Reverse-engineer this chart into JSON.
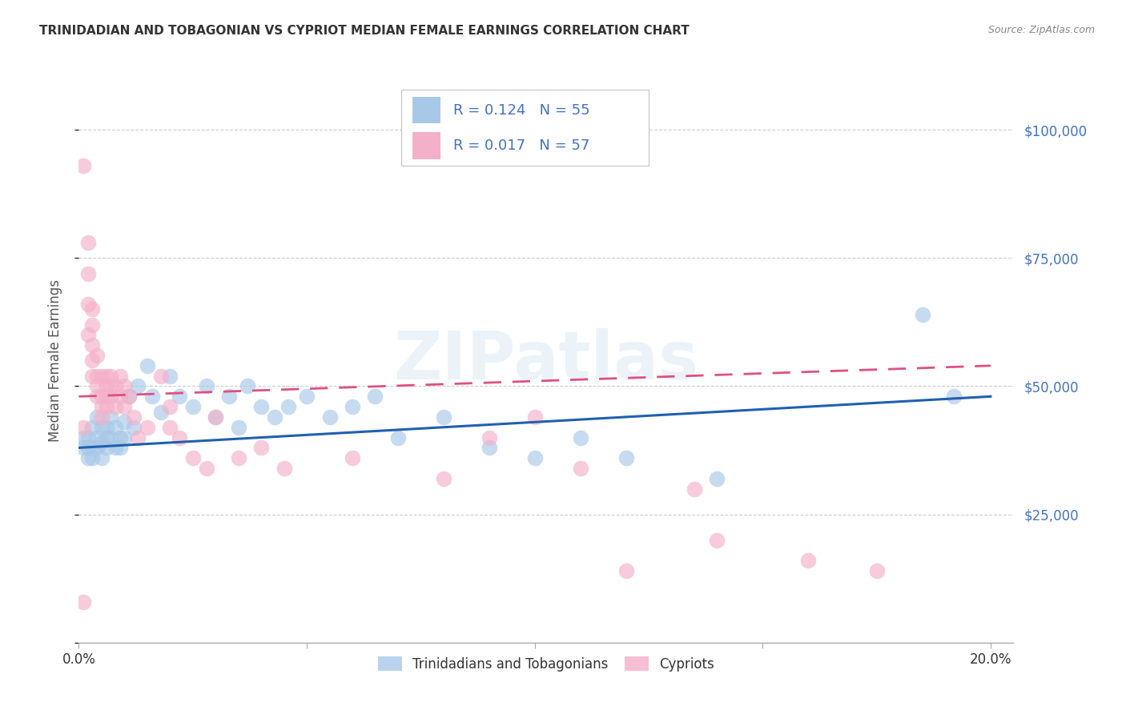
{
  "title": "TRINIDADIAN AND TOBAGONIAN VS CYPRIOT MEDIAN FEMALE EARNINGS CORRELATION CHART",
  "source": "Source: ZipAtlas.com",
  "ylabel": "Median Female Earnings",
  "watermark": "ZIPatlas",
  "R_blue": "0.124",
  "N_blue": "55",
  "R_pink": "0.017",
  "N_pink": "57",
  "xlim": [
    0.0,
    0.205
  ],
  "ylim": [
    0,
    110000
  ],
  "yticks": [
    0,
    25000,
    50000,
    75000,
    100000
  ],
  "ytick_labels": [
    "",
    "$25,000",
    "$50,000",
    "$75,000",
    "$100,000"
  ],
  "xticks": [
    0.0,
    0.05,
    0.1,
    0.15,
    0.2
  ],
  "xtick_labels": [
    "0.0%",
    "",
    "",
    "",
    "20.0%"
  ],
  "blue_fill": "#a8c8e8",
  "pink_fill": "#f4b0c8",
  "blue_line": "#2060b0",
  "pink_line": "#e05080",
  "text_blue": "#4472c4",
  "text_dark": "#333333",
  "text_gray": "#888888",
  "grid_color": "#cccccc",
  "bg_color": "#ffffff",
  "blue_x": [
    0.001,
    0.001,
    0.002,
    0.002,
    0.002,
    0.003,
    0.003,
    0.003,
    0.004,
    0.004,
    0.004,
    0.005,
    0.005,
    0.005,
    0.006,
    0.006,
    0.006,
    0.007,
    0.007,
    0.008,
    0.008,
    0.009,
    0.009,
    0.01,
    0.01,
    0.011,
    0.012,
    0.013,
    0.015,
    0.016,
    0.018,
    0.02,
    0.022,
    0.025,
    0.028,
    0.03,
    0.033,
    0.035,
    0.037,
    0.04,
    0.043,
    0.046,
    0.05,
    0.055,
    0.06,
    0.065,
    0.07,
    0.08,
    0.09,
    0.1,
    0.11,
    0.12,
    0.14,
    0.185,
    0.192
  ],
  "blue_y": [
    38000,
    40000,
    40000,
    38000,
    36000,
    42000,
    38000,
    36000,
    44000,
    40000,
    38000,
    42000,
    39000,
    36000,
    42000,
    40000,
    38000,
    44000,
    40000,
    42000,
    38000,
    40000,
    38000,
    43000,
    40000,
    48000,
    42000,
    50000,
    54000,
    48000,
    45000,
    52000,
    48000,
    46000,
    50000,
    44000,
    48000,
    42000,
    50000,
    46000,
    44000,
    46000,
    48000,
    44000,
    46000,
    48000,
    40000,
    44000,
    38000,
    36000,
    40000,
    36000,
    32000,
    64000,
    48000
  ],
  "pink_x": [
    0.001,
    0.001,
    0.001,
    0.002,
    0.002,
    0.002,
    0.002,
    0.003,
    0.003,
    0.003,
    0.003,
    0.003,
    0.004,
    0.004,
    0.004,
    0.004,
    0.005,
    0.005,
    0.005,
    0.005,
    0.006,
    0.006,
    0.006,
    0.006,
    0.007,
    0.007,
    0.007,
    0.008,
    0.008,
    0.009,
    0.009,
    0.01,
    0.01,
    0.011,
    0.012,
    0.013,
    0.015,
    0.018,
    0.02,
    0.02,
    0.022,
    0.025,
    0.028,
    0.03,
    0.035,
    0.04,
    0.045,
    0.06,
    0.08,
    0.09,
    0.1,
    0.11,
    0.12,
    0.135,
    0.14,
    0.16,
    0.175
  ],
  "pink_y": [
    93000,
    42000,
    8000,
    78000,
    72000,
    66000,
    60000,
    65000,
    62000,
    58000,
    55000,
    52000,
    56000,
    52000,
    50000,
    48000,
    52000,
    48000,
    46000,
    44000,
    52000,
    50000,
    48000,
    46000,
    52000,
    50000,
    48000,
    50000,
    46000,
    52000,
    48000,
    50000,
    46000,
    48000,
    44000,
    40000,
    42000,
    52000,
    46000,
    42000,
    40000,
    36000,
    34000,
    44000,
    36000,
    38000,
    34000,
    36000,
    32000,
    40000,
    44000,
    34000,
    14000,
    30000,
    20000,
    16000,
    14000
  ]
}
